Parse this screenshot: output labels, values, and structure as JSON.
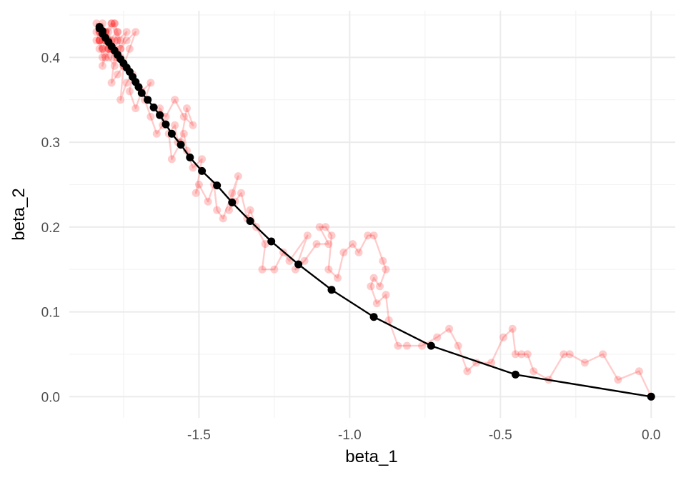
{
  "chart_data": {
    "type": "scatter",
    "xlabel": "beta_1",
    "ylabel": "beta_2",
    "xlim": [
      -1.93,
      0.08
    ],
    "ylim": [
      -0.025,
      0.455
    ],
    "x_ticks": [
      -1.5,
      -1.0,
      -0.5,
      0.0
    ],
    "x_tick_labels": [
      "-1.5",
      "-1.0",
      "-0.5",
      "0.0"
    ],
    "y_ticks": [
      0.0,
      0.1,
      0.2,
      0.3,
      0.4
    ],
    "y_tick_labels": [
      "0.0",
      "0.1",
      "0.2",
      "0.3",
      "0.4"
    ],
    "grid": true,
    "legend": "none",
    "series": [
      {
        "style": "path-with-points",
        "color": "#ff0000",
        "opacity": 0.2,
        "x": [
          0.0,
          -0.04,
          -0.11,
          -0.16,
          -0.22,
          -0.27,
          -0.29,
          -0.34,
          -0.39,
          -0.41,
          -0.43,
          -0.45,
          -0.46,
          -0.49,
          -0.53,
          -0.58,
          -0.61,
          -0.64,
          -0.67,
          -0.71,
          -0.76,
          -0.81,
          -0.84,
          -0.87,
          -0.88,
          -0.91,
          -0.93,
          -0.92,
          -0.9,
          -0.88,
          -0.89,
          -0.92,
          -0.94,
          -0.97,
          -0.99,
          -1.02,
          -1.04,
          -1.07,
          -1.06,
          -1.08,
          -1.1,
          -1.07,
          -1.11,
          -1.15,
          -1.18,
          -1.14,
          -1.2,
          -1.22,
          -1.25,
          -1.29,
          -1.28,
          -1.31,
          -1.33,
          -1.34,
          -1.36,
          -1.38,
          -1.4,
          -1.37,
          -1.39,
          -1.42,
          -1.44,
          -1.45,
          -1.47,
          -1.5,
          -1.51,
          -1.49,
          -1.52,
          -1.54,
          -1.55,
          -1.57,
          -1.58,
          -1.6,
          -1.59,
          -1.56,
          -1.54,
          -1.52,
          -1.55,
          -1.58,
          -1.61,
          -1.63,
          -1.62,
          -1.64,
          -1.66,
          -1.68,
          -1.66,
          -1.69,
          -1.71,
          -1.73,
          -1.72,
          -1.74,
          -1.76,
          -1.75,
          -1.77,
          -1.79,
          -1.78,
          -1.8,
          -1.82,
          -1.81,
          -1.83,
          -1.84,
          -1.82,
          -1.8,
          -1.78,
          -1.76,
          -1.74,
          -1.77,
          -1.79,
          -1.81,
          -1.83,
          -1.82,
          -1.8,
          -1.78,
          -1.76,
          -1.79,
          -1.81,
          -1.83,
          -1.82,
          -1.8,
          -1.77,
          -1.75,
          -1.73,
          -1.71,
          -1.74,
          -1.76,
          -1.78,
          -1.81,
          -1.83,
          -1.82,
          -1.79,
          -1.77,
          -1.8,
          -1.82,
          -1.84,
          -1.81,
          -1.78,
          -1.76,
          -1.79,
          -1.82,
          -1.84,
          -1.83,
          -1.8,
          -1.78,
          -1.81,
          -1.83,
          -1.82,
          -1.79,
          -1.77,
          -1.8
        ],
        "y": [
          0.0,
          0.03,
          0.02,
          0.05,
          0.04,
          0.05,
          0.05,
          0.02,
          0.03,
          0.05,
          0.05,
          0.05,
          0.08,
          0.07,
          0.04,
          0.04,
          0.03,
          0.06,
          0.08,
          0.07,
          0.06,
          0.06,
          0.06,
          0.09,
          0.12,
          0.11,
          0.13,
          0.14,
          0.13,
          0.15,
          0.16,
          0.19,
          0.19,
          0.17,
          0.18,
          0.17,
          0.14,
          0.15,
          0.19,
          0.2,
          0.2,
          0.18,
          0.18,
          0.16,
          0.15,
          0.19,
          0.16,
          0.17,
          0.15,
          0.15,
          0.18,
          0.2,
          0.22,
          0.21,
          0.24,
          0.23,
          0.22,
          0.26,
          0.24,
          0.21,
          0.22,
          0.25,
          0.23,
          0.25,
          0.24,
          0.28,
          0.27,
          0.29,
          0.31,
          0.3,
          0.32,
          0.31,
          0.28,
          0.3,
          0.34,
          0.32,
          0.33,
          0.35,
          0.33,
          0.34,
          0.32,
          0.31,
          0.33,
          0.35,
          0.37,
          0.36,
          0.34,
          0.36,
          0.38,
          0.37,
          0.35,
          0.39,
          0.38,
          0.37,
          0.4,
          0.41,
          0.39,
          0.42,
          0.43,
          0.42,
          0.41,
          0.4,
          0.39,
          0.41,
          0.43,
          0.42,
          0.44,
          0.43,
          0.42,
          0.41,
          0.43,
          0.44,
          0.42,
          0.41,
          0.4,
          0.42,
          0.43,
          0.41,
          0.4,
          0.39,
          0.41,
          0.43,
          0.42,
          0.41,
          0.44,
          0.43,
          0.42,
          0.4,
          0.41,
          0.43,
          0.42,
          0.44,
          0.43,
          0.42,
          0.41,
          0.4,
          0.42,
          0.43,
          0.44,
          0.43,
          0.41,
          0.42,
          0.43,
          0.41,
          0.42,
          0.44,
          0.43,
          0.42
        ]
      },
      {
        "style": "path-with-points",
        "color": "#000000",
        "opacity": 1.0,
        "x": [
          0.0,
          -0.45,
          -0.73,
          -0.92,
          -1.06,
          -1.17,
          -1.26,
          -1.33,
          -1.39,
          -1.44,
          -1.49,
          -1.53,
          -1.56,
          -1.59,
          -1.61,
          -1.63,
          -1.65,
          -1.67,
          -1.69,
          -1.7,
          -1.71,
          -1.72,
          -1.73,
          -1.74,
          -1.75,
          -1.76,
          -1.77,
          -1.78,
          -1.79,
          -1.8,
          -1.81,
          -1.82,
          -1.82,
          -1.83,
          -1.83
        ],
        "y": [
          0.0,
          0.026,
          0.06,
          0.094,
          0.126,
          0.156,
          0.183,
          0.207,
          0.229,
          0.249,
          0.266,
          0.282,
          0.297,
          0.31,
          0.321,
          0.332,
          0.341,
          0.35,
          0.358,
          0.365,
          0.371,
          0.377,
          0.383,
          0.388,
          0.393,
          0.398,
          0.403,
          0.408,
          0.413,
          0.418,
          0.423,
          0.428,
          0.431,
          0.434,
          0.436
        ]
      }
    ]
  }
}
